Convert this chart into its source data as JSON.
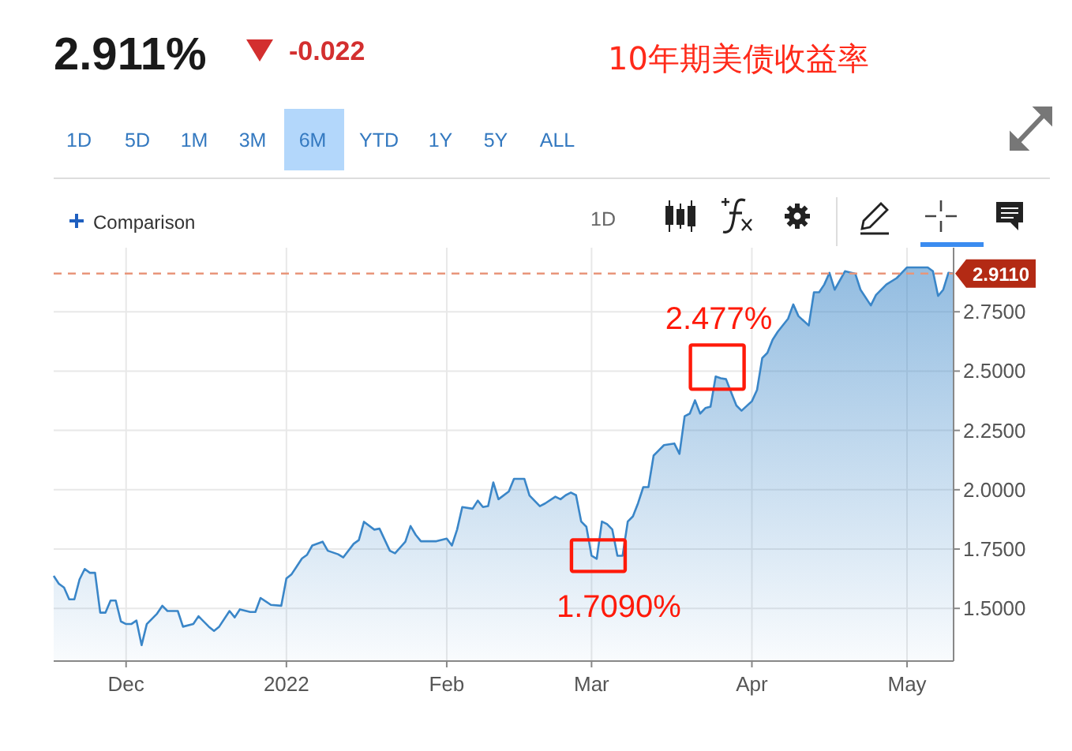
{
  "chart_data": {
    "type": "area",
    "title": "10年期美债收益率",
    "annotations": [
      "2.911%",
      "-0.022",
      "1D",
      "5D",
      "1M",
      "3M",
      "6M",
      "YTD",
      "1Y",
      "5Y",
      "ALL",
      "Comparison",
      "1D",
      {
        "text": "2.477%",
        "x": "2022-03-25",
        "y": 2.477
      },
      {
        "text": "1.7090%",
        "x": "2022-03-02",
        "y": 1.709
      }
    ],
    "x": [
      "2021-11-17",
      "2021-11-18",
      "2021-11-19",
      "2021-11-20",
      "2021-11-21",
      "2021-11-22",
      "2021-11-23",
      "2021-11-24",
      "2021-11-25",
      "2021-11-26",
      "2021-11-27",
      "2021-11-28",
      "2021-11-29",
      "2021-11-30",
      "2021-12-01",
      "2021-12-02",
      "2021-12-03",
      "2021-12-04",
      "2021-12-05",
      "2021-12-07",
      "2021-12-08",
      "2021-12-09",
      "2021-12-11",
      "2021-12-12",
      "2021-12-14",
      "2021-12-15",
      "2021-12-17",
      "2021-12-18",
      "2021-12-19",
      "2021-12-21",
      "2021-12-22",
      "2021-12-23",
      "2021-12-25",
      "2021-12-26",
      "2021-12-27",
      "2021-12-29",
      "2021-12-31",
      "2022-01-01",
      "2022-01-02",
      "2022-01-03",
      "2022-01-04",
      "2022-01-05",
      "2022-01-06",
      "2022-01-08",
      "2022-01-09",
      "2022-01-11",
      "2022-01-12",
      "2022-01-14",
      "2022-01-15",
      "2022-01-16",
      "2022-01-18",
      "2022-01-19",
      "2022-01-21",
      "2022-01-22",
      "2022-01-24",
      "2022-01-25",
      "2022-01-26",
      "2022-01-27",
      "2022-01-30",
      "2022-02-01",
      "2022-02-02",
      "2022-02-03",
      "2022-02-04",
      "2022-02-06",
      "2022-02-07",
      "2022-02-08",
      "2022-02-09",
      "2022-02-10",
      "2022-02-11",
      "2022-02-13",
      "2022-02-14",
      "2022-02-16",
      "2022-02-17",
      "2022-02-19",
      "2022-02-20",
      "2022-02-22",
      "2022-02-23",
      "2022-02-24",
      "2022-02-25",
      "2022-02-26",
      "2022-02-27",
      "2022-02-28",
      "2022-03-01",
      "2022-03-02",
      "2022-03-03",
      "2022-03-04",
      "2022-03-05",
      "2022-03-06",
      "2022-03-07",
      "2022-03-08",
      "2022-03-09",
      "2022-03-10",
      "2022-03-11",
      "2022-03-12",
      "2022-03-13",
      "2022-03-14",
      "2022-03-15",
      "2022-03-17",
      "2022-03-18",
      "2022-03-19",
      "2022-03-20",
      "2022-03-21",
      "2022-03-22",
      "2022-03-23",
      "2022-03-24",
      "2022-03-25",
      "2022-03-26",
      "2022-03-27",
      "2022-03-28",
      "2022-03-29",
      "2022-03-30",
      "2022-04-01",
      "2022-04-02",
      "2022-04-03",
      "2022-04-04",
      "2022-04-05",
      "2022-04-06",
      "2022-04-08",
      "2022-04-09",
      "2022-04-10",
      "2022-04-12",
      "2022-04-13",
      "2022-04-14",
      "2022-04-15",
      "2022-04-16",
      "2022-04-17",
      "2022-04-19",
      "2022-04-21",
      "2022-04-22",
      "2022-04-24",
      "2022-04-25",
      "2022-04-27",
      "2022-04-29",
      "2022-05-01",
      "2022-05-05",
      "2022-05-06",
      "2022-05-07",
      "2022-05-08",
      "2022-05-09",
      "2022-05-10"
    ],
    "series": [
      {
        "color": "#3a86c8",
        "values": [
          1.637,
          1.604,
          1.588,
          1.538,
          1.538,
          1.622,
          1.666,
          1.65,
          1.65,
          1.482,
          1.482,
          1.533,
          1.533,
          1.445,
          1.434,
          1.434,
          1.449,
          1.345,
          1.434,
          1.478,
          1.511,
          1.489,
          1.489,
          1.423,
          1.434,
          1.467,
          1.423,
          1.405,
          1.423,
          1.489,
          1.462,
          1.496,
          1.485,
          1.485,
          1.544,
          1.515,
          1.511,
          1.626,
          1.644,
          1.677,
          1.71,
          1.726,
          1.765,
          1.781,
          1.743,
          1.728,
          1.715,
          1.772,
          1.788,
          1.865,
          1.832,
          1.836,
          1.743,
          1.732,
          1.781,
          1.847,
          1.81,
          1.783,
          1.783,
          1.794,
          1.765,
          1.832,
          1.927,
          1.92,
          1.954,
          1.927,
          1.931,
          2.031,
          1.96,
          1.993,
          2.046,
          2.046,
          1.976,
          1.931,
          1.942,
          1.971,
          1.96,
          1.977,
          1.988,
          1.977,
          1.866,
          1.844,
          1.722,
          1.709,
          1.866,
          1.855,
          1.833,
          1.722,
          1.722,
          1.866,
          1.888,
          1.944,
          2.011,
          2.011,
          2.144,
          2.166,
          2.188,
          2.195,
          2.151,
          2.31,
          2.321,
          2.377,
          2.321,
          2.344,
          2.35,
          2.477,
          2.47,
          2.466,
          2.41,
          2.355,
          2.333,
          2.373,
          2.421,
          2.555,
          2.577,
          2.632,
          2.666,
          2.721,
          2.781,
          2.732,
          2.692,
          2.832,
          2.832,
          2.865,
          2.914,
          2.843,
          2.921,
          2.91,
          2.843,
          2.777,
          2.821,
          2.865,
          2.892,
          2.937,
          2.937,
          2.921,
          2.817,
          2.843,
          2.914,
          2.911
        ]
      }
    ],
    "xlim": [
      "2021-11-17",
      "2022-05-10"
    ],
    "xticks": [
      {
        "value": "2021-12-01",
        "label": "Dec"
      },
      {
        "value": "2022-01-01",
        "label": "2022"
      },
      {
        "value": "2022-02-01",
        "label": "Feb"
      },
      {
        "value": "2022-03-01",
        "label": "Mar"
      },
      {
        "value": "2022-04-01",
        "label": "Apr"
      },
      {
        "value": "2022-05-01",
        "label": "May"
      }
    ],
    "ylim": [
      1.278,
      3.02
    ],
    "yticks": [
      {
        "value": 1.5,
        "label": "1.5000"
      },
      {
        "value": 1.75,
        "label": "1.7500"
      },
      {
        "value": 2,
        "label": "2.0000"
      },
      {
        "value": 2.25,
        "label": "2.2500"
      },
      {
        "value": 2.5,
        "label": "2.5000"
      },
      {
        "value": 2.75,
        "label": "2.7500"
      }
    ],
    "grid": true,
    "marker": "none",
    "line_style": "solid",
    "ref_lines": [
      {
        "axis": "y",
        "value": 2.911,
        "label": "2.9110",
        "color": "#e8967a",
        "line_style": "dashed"
      }
    ]
  }
}
